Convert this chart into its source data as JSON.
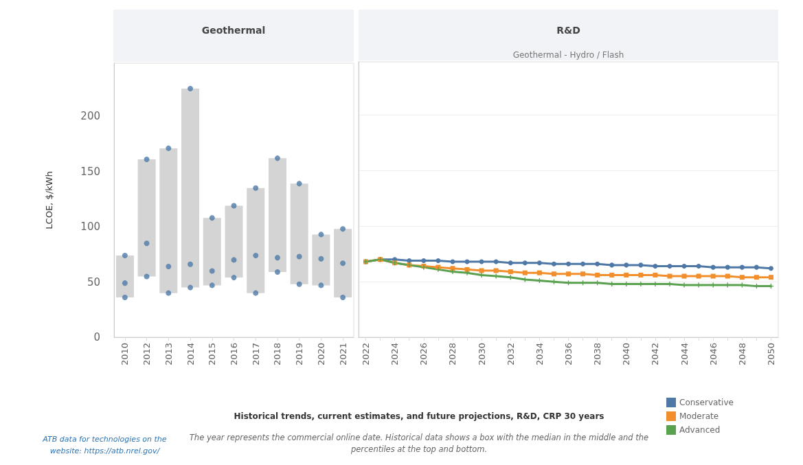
{
  "chart_data": [
    {
      "type": "bar",
      "title": "Geothermal",
      "ylabel": "LCOE, $/kWh",
      "categories": [
        "2010",
        "2012",
        "2013",
        "2014",
        "2015",
        "2016",
        "2017",
        "2018",
        "2019",
        "2020",
        "2021"
      ],
      "series": [
        {
          "type": "bar",
          "color": "#d4d4d4",
          "base": [
            36,
            55,
            40,
            45,
            47,
            54,
            40,
            59,
            48,
            47,
            36
          ],
          "values": [
            38,
            106,
            131,
            180,
            61,
            65,
            95,
            103,
            91,
            46,
            62
          ]
        },
        {
          "type": "scatter",
          "color": "#4e79a7",
          "values": [
            36,
            55,
            40,
            45,
            47,
            54,
            40,
            59,
            48,
            47,
            36
          ]
        },
        {
          "type": "scatter",
          "color": "#4e79a7",
          "values": [
            49,
            85,
            64,
            66,
            60,
            70,
            74,
            72,
            73,
            71,
            67
          ]
        },
        {
          "type": "scatter",
          "color": "#4e79a7",
          "values": [
            74,
            161,
            171,
            225,
            108,
            119,
            135,
            162,
            139,
            93,
            98
          ]
        }
      ],
      "ylim": [
        0,
        248
      ],
      "yticks": [
        0,
        50,
        100,
        150,
        200
      ],
      "grid": false,
      "annotations": [
        "ATB data for technologies on the website: https://atb.nrel.gov/"
      ]
    },
    {
      "type": "line",
      "title": "R&D",
      "subtitle": "Geothermal - Hydro / Flash",
      "categories": [
        "2022",
        null,
        "2024",
        null,
        "2026",
        null,
        "2028",
        null,
        "2030",
        null,
        "2032",
        null,
        "2034",
        null,
        "2036",
        null,
        "2038",
        null,
        "2040",
        null,
        "2042",
        null,
        "2044",
        null,
        "2046",
        null,
        "2048",
        null,
        "2050"
      ],
      "series": [
        {
          "name": "Conservative",
          "color": "#4e79a7",
          "marker": "circle",
          "values": [
            68,
            70,
            70,
            69,
            69,
            69,
            68,
            68,
            68,
            68,
            67,
            67,
            67,
            66,
            66,
            66,
            66,
            65,
            65,
            65,
            64,
            64,
            64,
            64,
            63,
            63,
            63,
            63,
            62
          ]
        },
        {
          "name": "Moderate",
          "color": "#f28e2b",
          "marker": "square",
          "values": [
            68,
            70,
            67,
            65,
            64,
            63,
            62,
            61,
            60,
            60,
            59,
            58,
            58,
            57,
            57,
            57,
            56,
            56,
            56,
            56,
            56,
            55,
            55,
            55,
            55,
            55,
            54,
            54,
            54
          ]
        },
        {
          "name": "Advanced",
          "color": "#59a14f",
          "marker": "cross",
          "values": [
            68,
            70,
            67,
            65,
            63,
            61,
            59,
            58,
            56,
            55,
            54,
            52,
            51,
            50,
            49,
            49,
            49,
            48,
            48,
            48,
            48,
            48,
            47,
            47,
            47,
            47,
            47,
            46,
            46
          ]
        }
      ],
      "ylim": [
        0,
        248
      ],
      "yticks": [
        0,
        50,
        100,
        150,
        200
      ],
      "tick_labels": "x",
      "grid": "y",
      "legend": "bottom right",
      "annotations": [
        "Historical trends, current estimates, and future projections, R&D, CRP 30 years",
        "The year represents the commercial online date. Historical data shows a box with the median in the middle and the percentiles at the top and bottom."
      ]
    }
  ]
}
